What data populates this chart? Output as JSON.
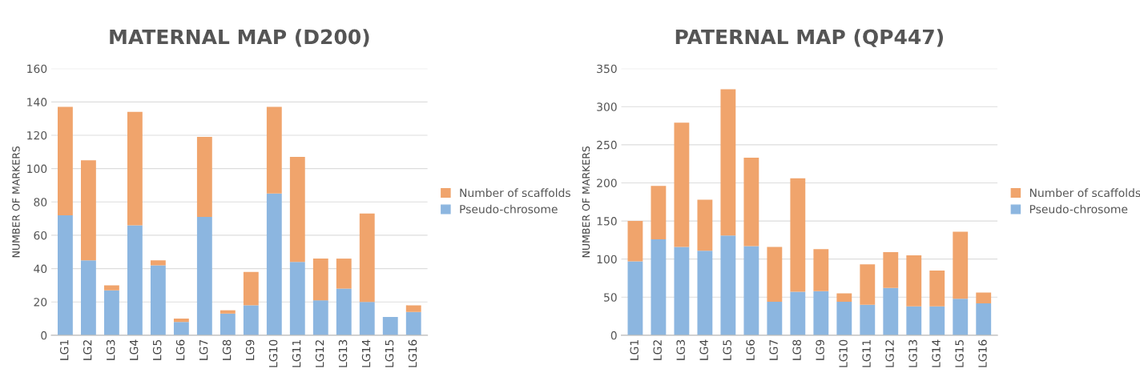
{
  "chart_data": [
    {
      "type": "bar",
      "title": "MATERNAL MAP (D200)",
      "ylabel": "NUMBER OF MARKERS",
      "stacked": true,
      "grid": "y",
      "legend": "right",
      "categories": [
        "LG1",
        "LG2",
        "LG3",
        "LG4",
        "LG5",
        "LG6",
        "LG7",
        "LG8",
        "LG9",
        "LG10",
        "LG11",
        "LG12",
        "LG13",
        "LG14",
        "LG15",
        "LG16"
      ],
      "ylim": [
        0,
        160
      ],
      "yticks": [
        0,
        20,
        40,
        60,
        80,
        100,
        120,
        140,
        160
      ],
      "series": [
        {
          "name": "Pseudo-chrosome",
          "color": "#8cb6e0",
          "values": [
            72,
            45,
            27,
            66,
            42,
            8,
            71,
            13,
            18,
            85,
            44,
            21,
            28,
            20,
            11,
            14
          ]
        },
        {
          "name": "Number of scaffolds",
          "color": "#f0a46c",
          "values": [
            65,
            60,
            3,
            68,
            3,
            2,
            48,
            2,
            20,
            52,
            63,
            25,
            18,
            53,
            0,
            4
          ]
        }
      ]
    },
    {
      "type": "bar",
      "title": "PATERNAL MAP (QP447)",
      "ylabel": "NUMBER OF MARKERS",
      "stacked": true,
      "grid": "y",
      "legend": "right",
      "categories": [
        "LG1",
        "LG2",
        "LG3",
        "LG4",
        "LG5",
        "LG6",
        "LG7",
        "LG8",
        "LG9",
        "LG10",
        "LG11",
        "LG12",
        "LG13",
        "LG14",
        "LG15",
        "LG16"
      ],
      "ylim": [
        0,
        350
      ],
      "yticks": [
        0,
        50,
        100,
        150,
        200,
        250,
        300,
        350
      ],
      "series": [
        {
          "name": "Pseudo-chrosome",
          "color": "#8cb6e0",
          "values": [
            97,
            126,
            116,
            111,
            131,
            117,
            44,
            57,
            58,
            44,
            40,
            62,
            38,
            38,
            48,
            42
          ]
        },
        {
          "name": "Number of scaffolds",
          "color": "#f0a46c",
          "values": [
            53,
            70,
            163,
            67,
            192,
            116,
            72,
            149,
            55,
            11,
            53,
            47,
            67,
            47,
            88,
            14
          ]
        }
      ]
    }
  ]
}
